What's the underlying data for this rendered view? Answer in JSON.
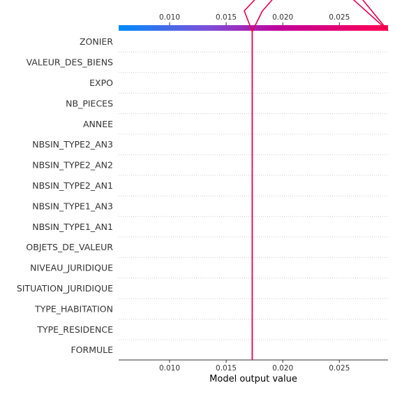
{
  "chart_data": {
    "type": "line",
    "chart_kind": "shap-decision-plot",
    "title": "",
    "xlabel": "Model output value",
    "ylabel": "",
    "xlim": [
      0.0055,
      0.0293
    ],
    "x_ticks": [
      0.01,
      0.015,
      0.02,
      0.025
    ],
    "tick_labels_top": [
      "0.010",
      "0.015",
      "0.020",
      "0.025"
    ],
    "tick_labels_bottom": [
      "0.010",
      "0.015",
      "0.020",
      "0.025"
    ],
    "base_value": 0.0173,
    "features": [
      "ZONIER",
      "VALEUR_DES_BIENS",
      "EXPO",
      "NB_PIECES",
      "ANNEE",
      "NBSIN_TYPE2_AN3",
      "NBSIN_TYPE2_AN2",
      "NBSIN_TYPE2_AN1",
      "NBSIN_TYPE1_AN3",
      "NBSIN_TYPE1_AN1",
      "OBJETS_DE_VALEUR",
      "NIVEAU_JURIDIQUE",
      "SITUATION_JURIDIQUE",
      "TYPE_HABITATION",
      "TYPE_RESIDENCE",
      "FORMULE"
    ],
    "grid": "dotted-horizontal",
    "colorbar": {
      "position": "top",
      "colors": [
        "#008bfb",
        "#7b4fd8",
        "#c1029a",
        "#ff0052"
      ]
    },
    "line_color": "#e8004c",
    "series": [
      {
        "values": [
          0.0173,
          0.0173,
          0.0173,
          0.0173,
          0.0173,
          0.0173,
          0.0173,
          0.0173,
          0.0173,
          0.0173,
          0.0173,
          0.0173,
          0.0173,
          0.0173,
          0.0173,
          0.0173,
          0.0173,
          0.0166,
          0.0183,
          0.0233,
          0.0293
        ]
      },
      {
        "values": [
          0.0173,
          0.0173,
          0.0173,
          0.0173,
          0.0173,
          0.0173,
          0.0173,
          0.0173,
          0.0173,
          0.0173,
          0.0173,
          0.0173,
          0.0173,
          0.0173,
          0.0173,
          0.0173,
          0.0173,
          0.0182,
          0.0198,
          0.0249,
          0.0293
        ]
      }
    ]
  }
}
